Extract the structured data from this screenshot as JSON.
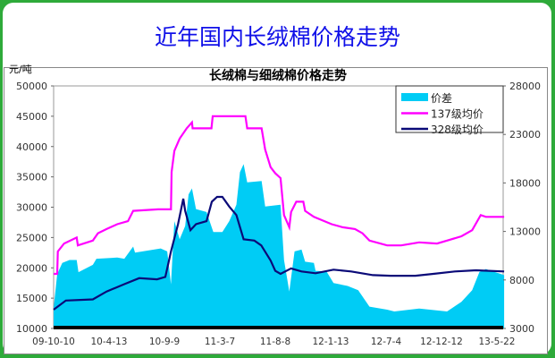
{
  "page_title": "近年国内长绒棉价格走势",
  "chart_data": {
    "type": "line",
    "title": "长绒棉与细绒棉价格走势",
    "ylabel": "元/吨",
    "xlabel": "",
    "x_ticks": [
      "09-10-10",
      "10-4-13",
      "10-9-9",
      "11-3-7",
      "11-8-8",
      "12-1-13",
      "12-7-4",
      "12-12-12",
      "13-5-22"
    ],
    "x_tick_dates": [
      "2009-10-10",
      "2010-04-13",
      "2010-09-09",
      "2011-03-07",
      "2011-08-08",
      "2012-01-13",
      "2012-07-04",
      "2012-12-12",
      "2013-05-22"
    ],
    "ylim_left": [
      10000,
      50000
    ],
    "yticks_left": [
      "10000",
      "15000",
      "20000",
      "25000",
      "30000",
      "35000",
      "40000",
      "45000",
      "50000"
    ],
    "ylim_right": [
      3000,
      28000
    ],
    "yticks_right": [
      "3000",
      "8000",
      "13000",
      "18000",
      "23000",
      "28000"
    ],
    "grid": false,
    "legend_placement": "top-right",
    "series": [
      {
        "name": "价差",
        "kind": "area",
        "axis": "right",
        "color": "#00ccf5",
        "points": [
          [
            "2009-10-10",
            5100
          ],
          [
            "2009-10-22",
            8600
          ],
          [
            "2009-11-08",
            9750
          ],
          [
            "2009-12-02",
            10060
          ],
          [
            "2009-12-26",
            10060
          ],
          [
            "2010-01-01",
            8800
          ],
          [
            "2010-02-18",
            9560
          ],
          [
            "2010-03-02",
            10190
          ],
          [
            "2010-05-05",
            10310
          ],
          [
            "2010-05-24",
            10190
          ],
          [
            "2010-06-17",
            11440
          ],
          [
            "2010-06-22",
            10810
          ],
          [
            "2010-08-30",
            11250
          ],
          [
            "2010-09-18",
            10940
          ],
          [
            "2010-09-30",
            7560
          ],
          [
            "2010-10-11",
            14060
          ],
          [
            "2010-10-28",
            12190
          ],
          [
            "2010-11-15",
            13560
          ],
          [
            "2010-11-26",
            16810
          ],
          [
            "2010-12-07",
            17440
          ],
          [
            "2010-12-20",
            15310
          ],
          [
            "2011-01-23",
            15000
          ],
          [
            "2011-02-14",
            12940
          ],
          [
            "2011-03-14",
            12940
          ],
          [
            "2011-04-02",
            14060
          ],
          [
            "2011-04-22",
            15750
          ],
          [
            "2011-05-02",
            19130
          ],
          [
            "2011-05-12",
            19940
          ],
          [
            "2011-05-22",
            18060
          ],
          [
            "2011-07-01",
            18190
          ],
          [
            "2011-07-11",
            15560
          ],
          [
            "2011-08-23",
            15750
          ],
          [
            "2011-09-02",
            10060
          ],
          [
            "2011-09-17",
            6810
          ],
          [
            "2011-10-02",
            10940
          ],
          [
            "2011-10-22",
            11130
          ],
          [
            "2011-11-01",
            9880
          ],
          [
            "2011-11-26",
            9750
          ],
          [
            "2011-12-01",
            8940
          ],
          [
            "2012-01-01",
            8880
          ],
          [
            "2012-01-22",
            7690
          ],
          [
            "2012-03-06",
            7380
          ],
          [
            "2012-04-08",
            6940
          ],
          [
            "2012-05-13",
            5250
          ],
          [
            "2012-07-07",
            4940
          ],
          [
            "2012-07-28",
            4750
          ],
          [
            "2012-10-08",
            5060
          ],
          [
            "2012-12-28",
            4750
          ],
          [
            "2013-02-08",
            5750
          ],
          [
            "2013-03-11",
            6940
          ],
          [
            "2013-04-01",
            8810
          ],
          [
            "2013-04-20",
            9130
          ],
          [
            "2013-06-12",
            8500
          ]
        ]
      },
      {
        "name": "137级均价",
        "kind": "line",
        "axis": "left",
        "color": "#ff00ff",
        "points": [
          [
            "2009-10-10",
            19000
          ],
          [
            "2009-10-22",
            19000
          ],
          [
            "2009-10-24",
            22700
          ],
          [
            "2009-11-14",
            24000
          ],
          [
            "2009-12-26",
            25000
          ],
          [
            "2009-12-30",
            23700
          ],
          [
            "2010-02-18",
            24500
          ],
          [
            "2010-03-07",
            25700
          ],
          [
            "2010-04-05",
            26400
          ],
          [
            "2010-05-05",
            27200
          ],
          [
            "2010-06-03",
            27700
          ],
          [
            "2010-06-17",
            29400
          ],
          [
            "2010-08-23",
            29650
          ],
          [
            "2010-09-30",
            29650
          ],
          [
            "2010-10-02",
            35800
          ],
          [
            "2010-10-11",
            39300
          ],
          [
            "2010-10-28",
            41300
          ],
          [
            "2010-11-20",
            43000
          ],
          [
            "2010-12-07",
            44000
          ],
          [
            "2010-12-09",
            43000
          ],
          [
            "2011-02-08",
            43000
          ],
          [
            "2011-02-12",
            45000
          ],
          [
            "2011-05-17",
            45000
          ],
          [
            "2011-05-22",
            43000
          ],
          [
            "2011-07-01",
            43000
          ],
          [
            "2011-07-11",
            39500
          ],
          [
            "2011-07-26",
            36600
          ],
          [
            "2011-08-08",
            35600
          ],
          [
            "2011-08-23",
            34800
          ],
          [
            "2011-09-02",
            28700
          ],
          [
            "2011-09-17",
            26700
          ],
          [
            "2011-09-22",
            29200
          ],
          [
            "2011-10-07",
            30900
          ],
          [
            "2011-10-27",
            30900
          ],
          [
            "2011-11-01",
            29400
          ],
          [
            "2011-11-26",
            28400
          ],
          [
            "2012-01-16",
            27200
          ],
          [
            "2012-02-19",
            26700
          ],
          [
            "2012-03-29",
            26400
          ],
          [
            "2012-04-21",
            25700
          ],
          [
            "2012-05-13",
            24500
          ],
          [
            "2012-07-07",
            23700
          ],
          [
            "2012-08-17",
            23700
          ],
          [
            "2012-10-08",
            24200
          ],
          [
            "2012-11-29",
            24000
          ],
          [
            "2012-12-28",
            24500
          ],
          [
            "2013-02-08",
            25200
          ],
          [
            "2013-03-11",
            26200
          ],
          [
            "2013-04-05",
            28700
          ],
          [
            "2013-04-20",
            28400
          ],
          [
            "2013-06-12",
            28400
          ]
        ]
      },
      {
        "name": "328级均价",
        "kind": "line",
        "axis": "left",
        "color": "#0a0a78",
        "points": [
          [
            "2009-10-10",
            13100
          ],
          [
            "2009-11-20",
            14600
          ],
          [
            "2010-02-18",
            14800
          ],
          [
            "2010-04-05",
            16100
          ],
          [
            "2010-05-24",
            17300
          ],
          [
            "2010-07-03",
            18300
          ],
          [
            "2010-08-20",
            18100
          ],
          [
            "2010-09-12",
            18500
          ],
          [
            "2010-09-30",
            22700
          ],
          [
            "2010-10-23",
            27200
          ],
          [
            "2010-11-09",
            31400
          ],
          [
            "2010-11-15",
            29400
          ],
          [
            "2010-12-02",
            26200
          ],
          [
            "2010-12-20",
            27200
          ],
          [
            "2011-01-23",
            27700
          ],
          [
            "2011-02-09",
            30900
          ],
          [
            "2011-02-26",
            31700
          ],
          [
            "2011-03-14",
            31700
          ],
          [
            "2011-04-02",
            30100
          ],
          [
            "2011-04-22",
            28700
          ],
          [
            "2011-05-12",
            24700
          ],
          [
            "2011-06-11",
            24500
          ],
          [
            "2011-06-30",
            23700
          ],
          [
            "2011-07-26",
            21200
          ],
          [
            "2011-08-08",
            19500
          ],
          [
            "2011-08-23",
            19000
          ],
          [
            "2011-09-22",
            19900
          ],
          [
            "2011-10-22",
            19400
          ],
          [
            "2011-12-01",
            19100
          ],
          [
            "2012-01-22",
            19700
          ],
          [
            "2012-03-17",
            19400
          ],
          [
            "2012-05-24",
            18800
          ],
          [
            "2012-07-17",
            18700
          ],
          [
            "2012-09-27",
            18700
          ],
          [
            "2012-11-18",
            19000
          ],
          [
            "2013-01-20",
            19400
          ],
          [
            "2013-03-22",
            19600
          ],
          [
            "2013-06-12",
            19400
          ]
        ]
      }
    ]
  }
}
